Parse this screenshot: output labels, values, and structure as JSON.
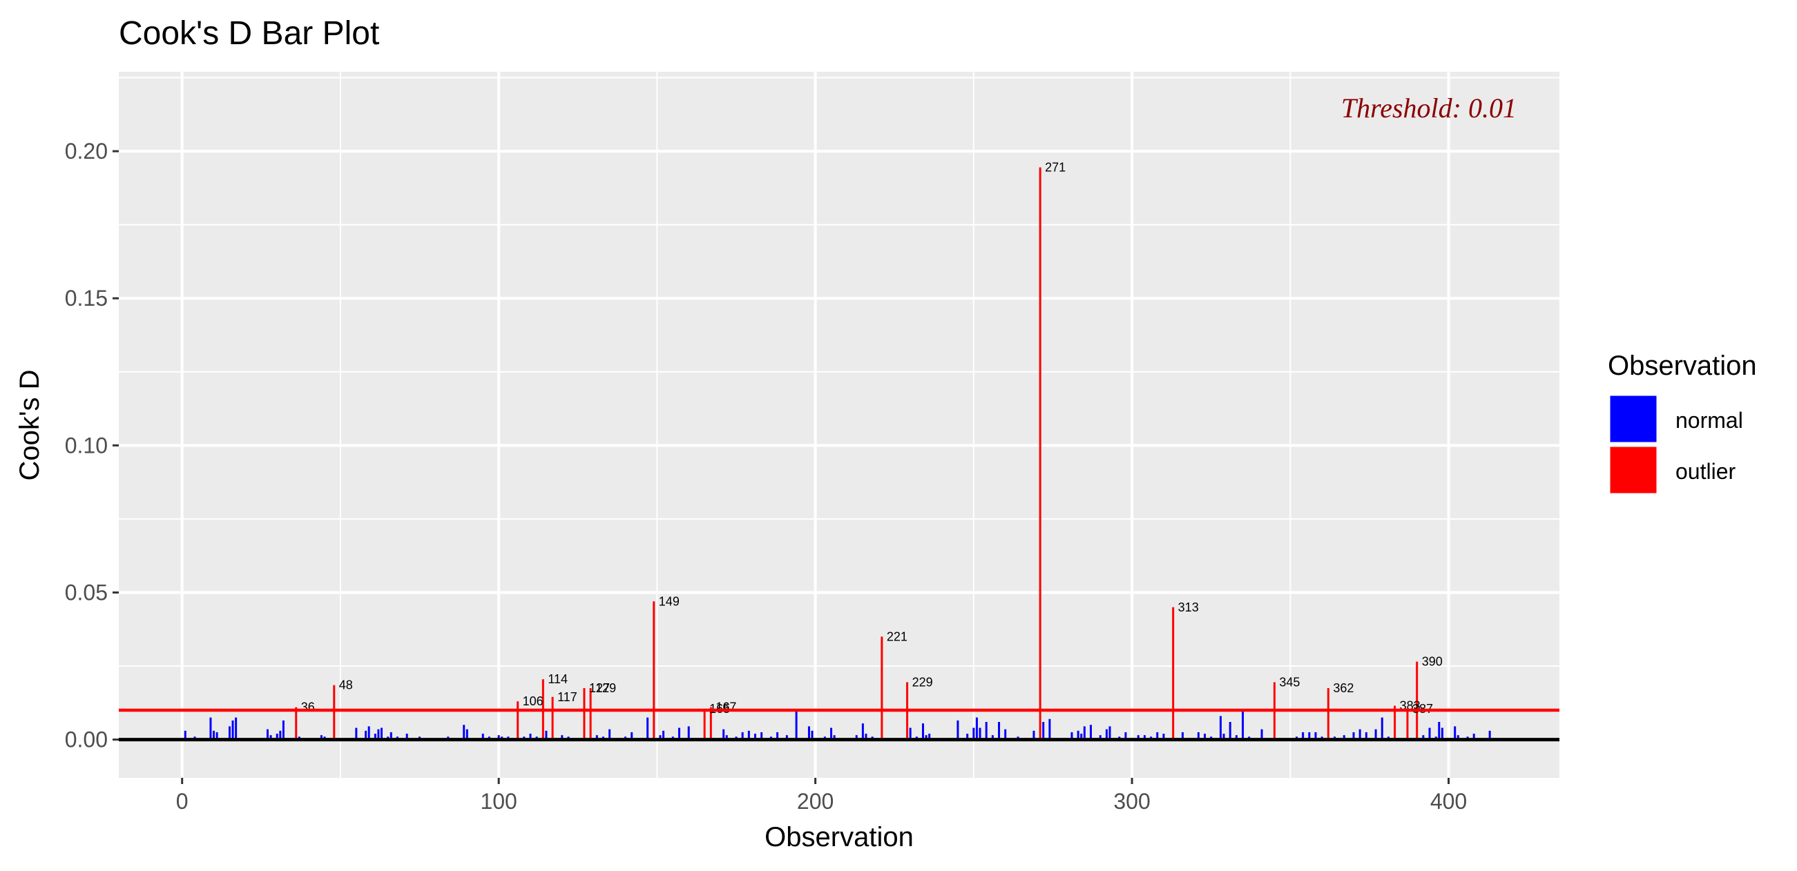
{
  "chart_data": {
    "type": "bar",
    "title": "Cook's D Bar Plot",
    "xlabel": "Observation",
    "ylabel": "Cook's D",
    "xlim": [
      -20,
      435
    ],
    "ylim": [
      -0.013,
      0.227
    ],
    "x_ticks": [
      0,
      100,
      200,
      300,
      400
    ],
    "y_ticks": [
      0.0,
      0.05,
      0.1,
      0.15,
      0.2
    ],
    "x_tick_labels": [
      "0",
      "100",
      "200",
      "300",
      "400"
    ],
    "y_tick_labels": [
      "0.00",
      "0.05",
      "0.10",
      "0.15",
      "0.20"
    ],
    "threshold": 0.01,
    "threshold_label": "Threshold: 0.01",
    "grid": true,
    "legend": {
      "title": "Observation",
      "position": "right",
      "entries": [
        {
          "name": "normal",
          "color": "#0000FF"
        },
        {
          "name": "outlier",
          "color": "#FF0000"
        }
      ]
    },
    "series": [
      {
        "name": "outlier",
        "points": [
          {
            "x": 36,
            "y": 0.011,
            "label": "36"
          },
          {
            "x": 48,
            "y": 0.0185,
            "label": "48"
          },
          {
            "x": 106,
            "y": 0.013,
            "label": "106"
          },
          {
            "x": 114,
            "y": 0.0205,
            "label": "114"
          },
          {
            "x": 117,
            "y": 0.0145,
            "label": "117"
          },
          {
            "x": 127,
            "y": 0.0175,
            "label": "127"
          },
          {
            "x": 129,
            "y": 0.0175,
            "label": "129"
          },
          {
            "x": 149,
            "y": 0.047,
            "label": "149"
          },
          {
            "x": 165,
            "y": 0.0105,
            "label": "165"
          },
          {
            "x": 167,
            "y": 0.011,
            "label": "167"
          },
          {
            "x": 221,
            "y": 0.035,
            "label": "221"
          },
          {
            "x": 229,
            "y": 0.0195,
            "label": "229"
          },
          {
            "x": 271,
            "y": 0.1945,
            "label": "271"
          },
          {
            "x": 313,
            "y": 0.045,
            "label": "313"
          },
          {
            "x": 345,
            "y": 0.0195,
            "label": "345"
          },
          {
            "x": 362,
            "y": 0.0175,
            "label": "362"
          },
          {
            "x": 383,
            "y": 0.0115,
            "label": "383"
          },
          {
            "x": 387,
            "y": 0.0105,
            "label": "387"
          },
          {
            "x": 390,
            "y": 0.0265,
            "label": "390"
          }
        ]
      },
      {
        "name": "normal",
        "points": [
          {
            "x": 1,
            "y": 0.003
          },
          {
            "x": 4,
            "y": 0.001
          },
          {
            "x": 9,
            "y": 0.0075
          },
          {
            "x": 10,
            "y": 0.003
          },
          {
            "x": 11,
            "y": 0.0025
          },
          {
            "x": 15,
            "y": 0.0045
          },
          {
            "x": 16,
            "y": 0.0065
          },
          {
            "x": 17,
            "y": 0.0075
          },
          {
            "x": 21,
            "y": 0.0005
          },
          {
            "x": 27,
            "y": 0.0035
          },
          {
            "x": 28,
            "y": 0.0015
          },
          {
            "x": 30,
            "y": 0.002
          },
          {
            "x": 31,
            "y": 0.003
          },
          {
            "x": 32,
            "y": 0.0065
          },
          {
            "x": 33,
            "y": 0.0005
          },
          {
            "x": 37,
            "y": 0.001
          },
          {
            "x": 38,
            "y": 0.0005
          },
          {
            "x": 44,
            "y": 0.0015
          },
          {
            "x": 45,
            "y": 0.001
          },
          {
            "x": 55,
            "y": 0.004
          },
          {
            "x": 58,
            "y": 0.003
          },
          {
            "x": 59,
            "y": 0.0045
          },
          {
            "x": 61,
            "y": 0.002
          },
          {
            "x": 62,
            "y": 0.0035
          },
          {
            "x": 63,
            "y": 0.004
          },
          {
            "x": 65,
            "y": 0.001
          },
          {
            "x": 66,
            "y": 0.0025
          },
          {
            "x": 68,
            "y": 0.001
          },
          {
            "x": 71,
            "y": 0.002
          },
          {
            "x": 75,
            "y": 0.001
          },
          {
            "x": 84,
            "y": 0.001
          },
          {
            "x": 85,
            "y": 0.0005
          },
          {
            "x": 89,
            "y": 0.005
          },
          {
            "x": 90,
            "y": 0.0035
          },
          {
            "x": 92,
            "y": 0.0005
          },
          {
            "x": 95,
            "y": 0.002
          },
          {
            "x": 97,
            "y": 0.001
          },
          {
            "x": 100,
            "y": 0.0015
          },
          {
            "x": 101,
            "y": 0.001
          },
          {
            "x": 103,
            "y": 0.001
          },
          {
            "x": 108,
            "y": 0.001
          },
          {
            "x": 110,
            "y": 0.002
          },
          {
            "x": 112,
            "y": 0.001
          },
          {
            "x": 115,
            "y": 0.003
          },
          {
            "x": 120,
            "y": 0.0015
          },
          {
            "x": 122,
            "y": 0.001
          },
          {
            "x": 124,
            "y": 0.0005
          },
          {
            "x": 131,
            "y": 0.0015
          },
          {
            "x": 133,
            "y": 0.001
          },
          {
            "x": 135,
            "y": 0.0035
          },
          {
            "x": 140,
            "y": 0.001
          },
          {
            "x": 142,
            "y": 0.0025
          },
          {
            "x": 147,
            "y": 0.0075
          },
          {
            "x": 151,
            "y": 0.0015
          },
          {
            "x": 152,
            "y": 0.003
          },
          {
            "x": 155,
            "y": 0.001
          },
          {
            "x": 157,
            "y": 0.004
          },
          {
            "x": 160,
            "y": 0.0045
          },
          {
            "x": 171,
            "y": 0.0035
          },
          {
            "x": 172,
            "y": 0.0015
          },
          {
            "x": 175,
            "y": 0.001
          },
          {
            "x": 177,
            "y": 0.0025
          },
          {
            "x": 179,
            "y": 0.003
          },
          {
            "x": 181,
            "y": 0.002
          },
          {
            "x": 183,
            "y": 0.0025
          },
          {
            "x": 186,
            "y": 0.001
          },
          {
            "x": 188,
            "y": 0.0025
          },
          {
            "x": 191,
            "y": 0.0015
          },
          {
            "x": 194,
            "y": 0.0095
          },
          {
            "x": 198,
            "y": 0.0045
          },
          {
            "x": 199,
            "y": 0.003
          },
          {
            "x": 203,
            "y": 0.001
          },
          {
            "x": 205,
            "y": 0.004
          },
          {
            "x": 206,
            "y": 0.0015
          },
          {
            "x": 210,
            "y": 0.0005
          },
          {
            "x": 213,
            "y": 0.0015
          },
          {
            "x": 215,
            "y": 0.0055
          },
          {
            "x": 216,
            "y": 0.002
          },
          {
            "x": 218,
            "y": 0.001
          },
          {
            "x": 230,
            "y": 0.004
          },
          {
            "x": 232,
            "y": 0.001
          },
          {
            "x": 234,
            "y": 0.0055
          },
          {
            "x": 235,
            "y": 0.0015
          },
          {
            "x": 236,
            "y": 0.002
          },
          {
            "x": 240,
            "y": 0.0005
          },
          {
            "x": 245,
            "y": 0.0065
          },
          {
            "x": 248,
            "y": 0.002
          },
          {
            "x": 250,
            "y": 0.004
          },
          {
            "x": 251,
            "y": 0.0075
          },
          {
            "x": 252,
            "y": 0.004
          },
          {
            "x": 254,
            "y": 0.006
          },
          {
            "x": 256,
            "y": 0.0015
          },
          {
            "x": 258,
            "y": 0.006
          },
          {
            "x": 260,
            "y": 0.0035
          },
          {
            "x": 264,
            "y": 0.001
          },
          {
            "x": 266,
            "y": 0.0005
          },
          {
            "x": 269,
            "y": 0.003
          },
          {
            "x": 272,
            "y": 0.006
          },
          {
            "x": 274,
            "y": 0.007
          },
          {
            "x": 278,
            "y": 0.0005
          },
          {
            "x": 281,
            "y": 0.0025
          },
          {
            "x": 283,
            "y": 0.003
          },
          {
            "x": 284,
            "y": 0.002
          },
          {
            "x": 285,
            "y": 0.0045
          },
          {
            "x": 287,
            "y": 0.005
          },
          {
            "x": 290,
            "y": 0.0015
          },
          {
            "x": 292,
            "y": 0.0035
          },
          {
            "x": 293,
            "y": 0.0045
          },
          {
            "x": 296,
            "y": 0.001
          },
          {
            "x": 298,
            "y": 0.0025
          },
          {
            "x": 300,
            "y": 0.0005
          },
          {
            "x": 302,
            "y": 0.0015
          },
          {
            "x": 304,
            "y": 0.0015
          },
          {
            "x": 306,
            "y": 0.001
          },
          {
            "x": 308,
            "y": 0.0025
          },
          {
            "x": 310,
            "y": 0.002
          },
          {
            "x": 316,
            "y": 0.0025
          },
          {
            "x": 319,
            "y": 0.0005
          },
          {
            "x": 321,
            "y": 0.0025
          },
          {
            "x": 323,
            "y": 0.002
          },
          {
            "x": 325,
            "y": 0.001
          },
          {
            "x": 328,
            "y": 0.008
          },
          {
            "x": 329,
            "y": 0.002
          },
          {
            "x": 331,
            "y": 0.006
          },
          {
            "x": 333,
            "y": 0.0015
          },
          {
            "x": 335,
            "y": 0.0095
          },
          {
            "x": 337,
            "y": 0.001
          },
          {
            "x": 341,
            "y": 0.0035
          },
          {
            "x": 348,
            "y": 0.0005
          },
          {
            "x": 352,
            "y": 0.001
          },
          {
            "x": 354,
            "y": 0.0025
          },
          {
            "x": 356,
            "y": 0.0025
          },
          {
            "x": 358,
            "y": 0.0025
          },
          {
            "x": 360,
            "y": 0.001
          },
          {
            "x": 364,
            "y": 0.001
          },
          {
            "x": 367,
            "y": 0.0015
          },
          {
            "x": 370,
            "y": 0.0025
          },
          {
            "x": 372,
            "y": 0.0035
          },
          {
            "x": 374,
            "y": 0.0025
          },
          {
            "x": 377,
            "y": 0.0035
          },
          {
            "x": 379,
            "y": 0.0075
          },
          {
            "x": 381,
            "y": 0.001
          },
          {
            "x": 392,
            "y": 0.0015
          },
          {
            "x": 394,
            "y": 0.004
          },
          {
            "x": 396,
            "y": 0.001
          },
          {
            "x": 397,
            "y": 0.006
          },
          {
            "x": 398,
            "y": 0.004
          },
          {
            "x": 402,
            "y": 0.0045
          },
          {
            "x": 403,
            "y": 0.0015
          },
          {
            "x": 406,
            "y": 0.001
          },
          {
            "x": 408,
            "y": 0.002
          },
          {
            "x": 410,
            "y": 0.0005
          },
          {
            "x": 413,
            "y": 0.003
          }
        ]
      }
    ]
  }
}
